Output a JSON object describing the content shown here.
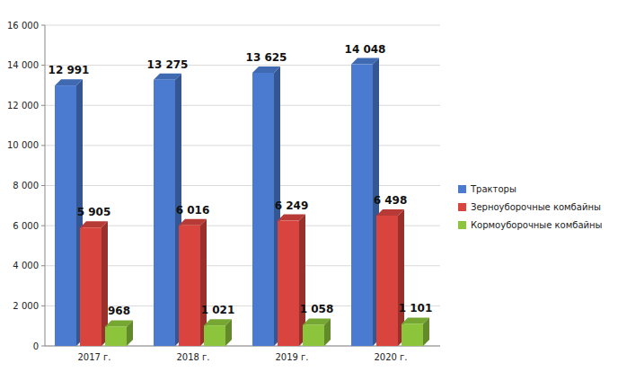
{
  "chart_data": {
    "type": "bar",
    "categories": [
      "2017 г.",
      "2018 г.",
      "2019 г.",
      "2020 г."
    ],
    "series": [
      {
        "name": "Тракторы",
        "color": "#4a7bd0",
        "values": [
          12991,
          13275,
          13625,
          14048
        ],
        "value_labels": [
          "12 991",
          "13 275",
          "13 625",
          "14 048"
        ]
      },
      {
        "name": "Зерноуборочные комбайны",
        "color": "#d9443f",
        "values": [
          5905,
          6016,
          6249,
          6498
        ],
        "value_labels": [
          "5 905",
          "6 016",
          "6 249",
          "6 498"
        ]
      },
      {
        "name": "Кормоуборочные комбайны",
        "color": "#8cc43c",
        "values": [
          968,
          1021,
          1058,
          1101
        ],
        "value_labels": [
          "968",
          "1 021",
          "1 058",
          "1 101"
        ]
      }
    ],
    "ylim": [
      0,
      16000
    ],
    "yticks": [
      0,
      {
        "value": 2000,
        "label": "2 000"
      },
      {
        "value": 4000,
        "label": "4 000"
      },
      {
        "value": 6000,
        "label": "6 000"
      },
      {
        "value": 8000,
        "label": "8 000"
      },
      {
        "value": 10000,
        "label": "10 000"
      },
      {
        "value": 12000,
        "label": "12 000"
      },
      {
        "value": 14000,
        "label": "14 000"
      },
      {
        "value": 16000,
        "label": "16 000"
      }
    ],
    "grid": true,
    "legend": "right",
    "data_labels": true
  }
}
